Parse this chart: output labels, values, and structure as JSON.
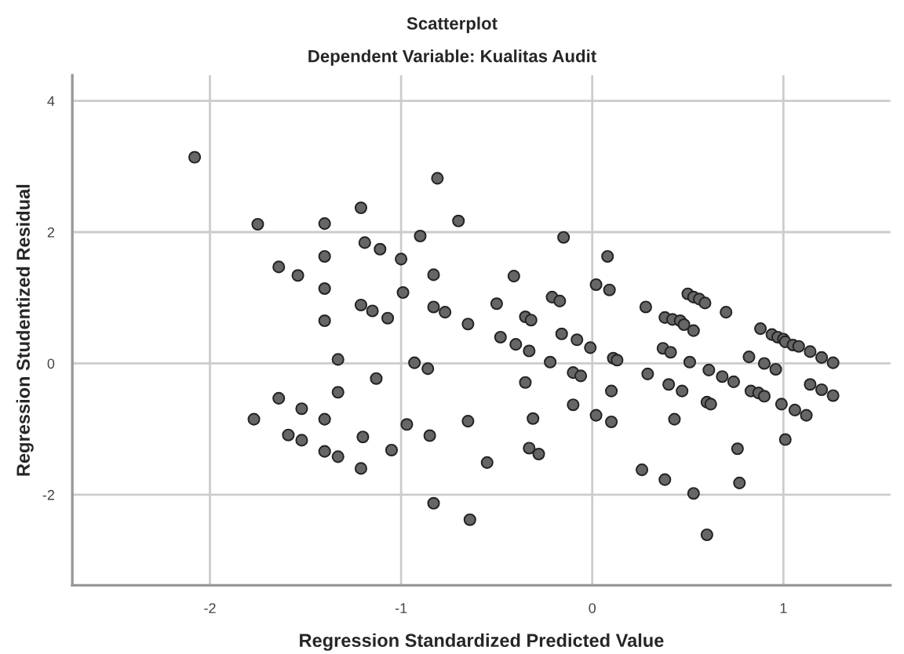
{
  "chart_data": {
    "type": "scatter",
    "title": "Scatterplot",
    "subtitle": "Dependent Variable: Kualitas Audit",
    "xlabel": "Regression Standardized Predicted Value",
    "ylabel": "Regression Studentized Residual",
    "x": [
      -2.08,
      -1.75,
      -1.64,
      -1.54,
      -1.4,
      -1.4,
      -1.4,
      -1.4,
      -1.21,
      -1.19,
      -1.11,
      -1.0,
      -0.99,
      -1.21,
      -1.15,
      -1.07,
      -0.9,
      -0.81,
      -0.7,
      -0.83,
      -0.83,
      -0.77,
      -0.65,
      -0.15,
      0.08,
      0.02,
      0.09,
      -0.41,
      -0.5,
      -0.35,
      -0.32,
      -0.21,
      -0.17,
      -0.16,
      -0.08,
      -0.48,
      0.28,
      0.38,
      0.42,
      0.46,
      0.48,
      0.5,
      0.53,
      0.56,
      0.59,
      0.53,
      0.7,
      0.88,
      0.94,
      0.97,
      1.0,
      1.01,
      1.05,
      1.08,
      1.14,
      1.2,
      1.26,
      -0.01,
      -0.4,
      -0.33,
      -0.22,
      -0.35,
      -0.1,
      -0.06,
      0.11,
      0.13,
      0.1,
      -0.1,
      0.02,
      0.1,
      -0.31,
      -0.65,
      -0.33,
      -0.28,
      -0.55,
      -0.64,
      0.37,
      0.41,
      0.29,
      0.51,
      0.61,
      0.68,
      0.74,
      0.82,
      0.9,
      0.96,
      0.4,
      0.47,
      0.83,
      0.87,
      0.9,
      0.99,
      1.06,
      1.12,
      1.14,
      1.2,
      1.26,
      0.6,
      0.62,
      0.43,
      1.01,
      0.76,
      0.77,
      0.26,
      0.38,
      0.53,
      0.6,
      -1.33,
      -0.93,
      -0.86,
      -1.13,
      -1.33,
      -1.64,
      -1.52,
      -1.77,
      -1.4,
      -0.97,
      -1.59,
      -1.52,
      -1.2,
      -0.85,
      -1.4,
      -1.33,
      -1.05,
      -1.21,
      -0.83
    ],
    "values": [
      3.14,
      2.12,
      1.47,
      1.34,
      2.13,
      1.63,
      1.14,
      0.65,
      2.37,
      1.84,
      1.74,
      1.59,
      1.08,
      0.89,
      0.8,
      0.69,
      1.94,
      2.82,
      2.17,
      1.35,
      0.86,
      0.78,
      0.6,
      1.92,
      1.63,
      1.2,
      1.12,
      1.33,
      0.91,
      0.71,
      0.66,
      1.01,
      0.95,
      0.45,
      0.36,
      0.4,
      0.86,
      0.7,
      0.67,
      0.65,
      0.59,
      1.06,
      1.01,
      0.98,
      0.92,
      0.5,
      0.78,
      0.53,
      0.44,
      0.4,
      0.37,
      0.33,
      0.28,
      0.26,
      0.18,
      0.09,
      0.01,
      0.24,
      0.29,
      0.19,
      0.02,
      -0.29,
      -0.14,
      -0.19,
      0.08,
      0.05,
      -0.42,
      -0.63,
      -0.79,
      -0.89,
      -0.84,
      -0.88,
      -1.29,
      -1.38,
      -1.51,
      -2.38,
      0.23,
      0.17,
      -0.16,
      0.02,
      -0.1,
      -0.2,
      -0.28,
      0.1,
      0.0,
      -0.09,
      -0.32,
      -0.42,
      -0.42,
      -0.45,
      -0.5,
      -0.62,
      -0.71,
      -0.79,
      -0.32,
      -0.4,
      -0.49,
      -0.59,
      -0.62,
      -0.85,
      -1.16,
      -1.3,
      -1.82,
      -1.62,
      -1.77,
      -1.98,
      -2.61,
      0.06,
      0.01,
      -0.08,
      -0.23,
      -0.44,
      -0.53,
      -0.69,
      -0.85,
      -0.85,
      -0.93,
      -1.09,
      -1.17,
      -1.12,
      -1.1,
      -1.34,
      -1.42,
      -1.32,
      -1.6,
      -2.13
    ],
    "color": "#666666",
    "marker": "circle",
    "grid": true,
    "xlim": [
      -2.72,
      1.56
    ],
    "xticks": [
      {
        "value": -2,
        "label": "-2"
      },
      {
        "value": -1,
        "label": "-1"
      },
      0,
      1
    ],
    "ylim": [
      -3.38,
      4.39
    ],
    "yticks": [
      {
        "value": -2,
        "label": "-2"
      },
      0,
      2,
      4
    ]
  }
}
